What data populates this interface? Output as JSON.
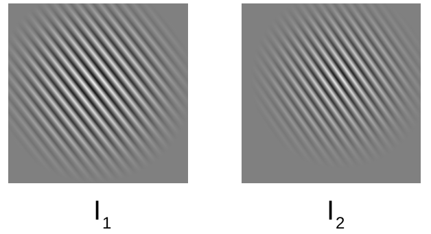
{
  "panels": [
    {
      "label": "I",
      "subscript": "1"
    },
    {
      "label": "I",
      "subscript": "2"
    }
  ]
}
